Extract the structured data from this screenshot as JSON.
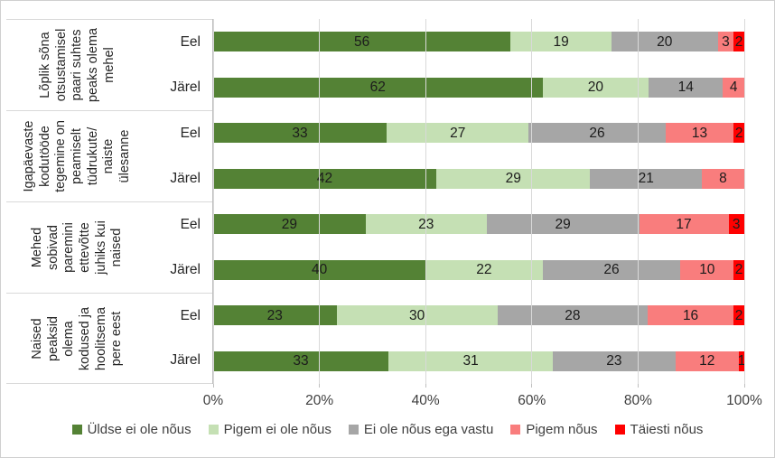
{
  "chart_data": {
    "type": "bar",
    "variant": "horizontal-stacked-100",
    "title": "",
    "xlabel": "",
    "ylabel": "",
    "x_ticks": [
      "0%",
      "20%",
      "40%",
      "60%",
      "80%",
      "100%"
    ],
    "xlim": [
      0,
      100
    ],
    "grid": "vertical",
    "legend_position": "bottom",
    "series": [
      {
        "name": "Üldse ei ole nõus",
        "color": "#548235"
      },
      {
        "name": "Pigem ei ole nõus",
        "color": "#c5e0b4"
      },
      {
        "name": "Ei ole nõus ega vastu",
        "color": "#a6a6a6"
      },
      {
        "name": "Pigem nõus",
        "color": "#f97d7d"
      },
      {
        "name": "Täiesti nõus",
        "color": "#ff0000"
      }
    ],
    "groups": [
      {
        "label": "Lõplik sõna\notsustamisel\npaari suhtes\npeaks olema\nmehel",
        "rows": [
          {
            "label": "Eel",
            "values": [
              56,
              19,
              20,
              3,
              2
            ]
          },
          {
            "label": "Järel",
            "values": [
              62,
              20,
              14,
              4,
              0
            ]
          }
        ]
      },
      {
        "label": "Igapäevaste\nkodutööde\ntegemine on\npeamiselt\ntüdrukute/\nnaiste\nülesanne",
        "rows": [
          {
            "label": "Eel",
            "values": [
              33,
              27,
              26,
              13,
              2
            ]
          },
          {
            "label": "Järel",
            "values": [
              42,
              29,
              21,
              8,
              0
            ]
          }
        ]
      },
      {
        "label": "Mehed\nsobivad\nparemini\nettevõtte\njuhiks kui\nnaised",
        "rows": [
          {
            "label": "Eel",
            "values": [
              29,
              23,
              29,
              17,
              3
            ]
          },
          {
            "label": "Järel",
            "values": [
              40,
              22,
              26,
              10,
              2
            ]
          }
        ]
      },
      {
        "label": "Naised\npeaksid\nolema\nkodused ja\nhoolitsema\npere eest",
        "rows": [
          {
            "label": "Eel",
            "values": [
              23,
              30,
              28,
              16,
              2
            ]
          },
          {
            "label": "Järel",
            "values": [
              33,
              31,
              23,
              12,
              1
            ]
          }
        ]
      }
    ],
    "colors": {
      "gridline": "#d9d9d9",
      "axis_line": "#bfbfbf",
      "separator": "#d9d9d9",
      "value_label": "#1c1c1c",
      "axis_text": "#404040"
    }
  }
}
